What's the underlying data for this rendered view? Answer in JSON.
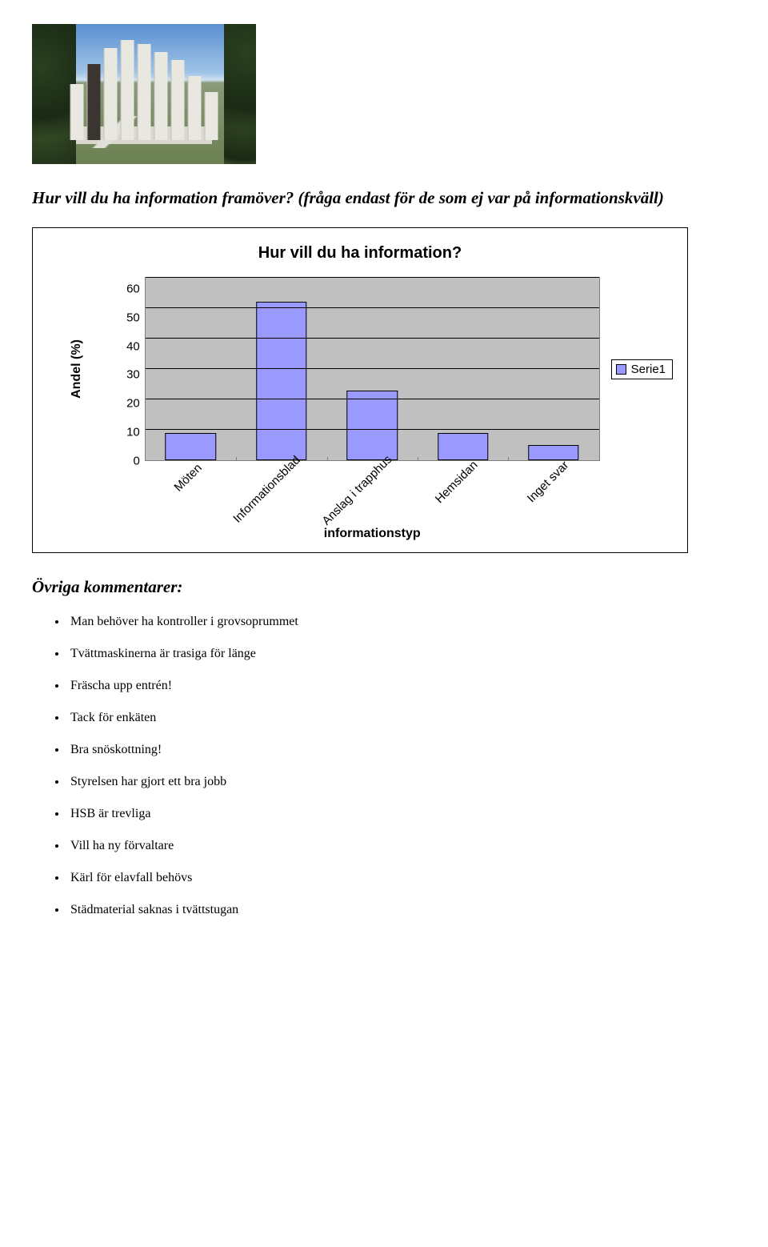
{
  "heading_question": "Hur vill du ha information framöver? (fråga endast för de som ej var på informationskväll)",
  "chart": {
    "type": "bar",
    "title": "Hur vill du ha information?",
    "ylabel": "Andel (%)",
    "xlabel": "informationstyp",
    "ylim": [
      0,
      60
    ],
    "ytick_step": 10,
    "yticks": [
      "0",
      "10",
      "20",
      "30",
      "40",
      "50",
      "60"
    ],
    "categories": [
      "Möten",
      "Informationsblad",
      "Anslag i trapphus",
      "Hemsidan",
      "Inget svar"
    ],
    "values": [
      9,
      52,
      23,
      9,
      5
    ],
    "bar_color": "#9999ff",
    "bar_border": "#000000",
    "plot_background": "#c0c0c0",
    "grid_color": "#000000",
    "axis_color": "#7f7f7f",
    "frame_border": "#000000",
    "label_fontsize": 15,
    "title_fontsize": 20,
    "legend": {
      "label": "Serie1",
      "swatch_color": "#9999ff"
    }
  },
  "comments_heading": "Övriga kommentarer:",
  "comments": [
    "Man behöver ha kontroller i grovsoprummet",
    "Tvättmaskinerna är trasiga för länge",
    "Fräscha upp entrén!",
    "Tack för enkäten",
    "Bra snöskottning!",
    "Styrelsen har gjort ett bra jobb",
    "HSB är trevliga",
    "Vill ha ny förvaltare",
    "Kärl för elavfall behövs",
    "Städmaterial saknas i tvättstugan"
  ]
}
